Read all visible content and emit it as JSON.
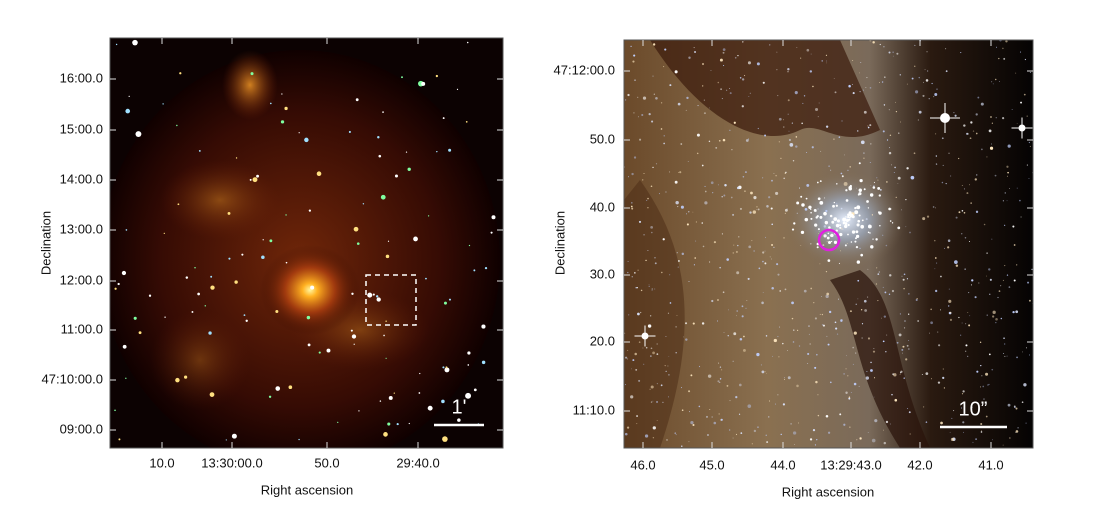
{
  "panels": [
    {
      "y_label": "Declination",
      "x_label": "Right ascension",
      "y_ticks": [
        "16:00.0",
        "15:00.0",
        "14:00.0",
        "13:00.0",
        "12:00.0",
        "11:00.0",
        "47:10:00.0",
        "09:00.0"
      ],
      "x_ticks": [
        "10.0",
        "13:30:00.0",
        "50.0",
        "29:40.0"
      ],
      "scale_bar": "1'"
    },
    {
      "y_label": "Declination",
      "x_label": "Right ascension",
      "y_ticks": [
        "47:12:00.0",
        "50.0",
        "40.0",
        "30.0",
        "20.0",
        "11:10.0"
      ],
      "x_ticks": [
        "46.0",
        "45.0",
        "44.0",
        "13:29:43.0",
        "42.0",
        "41.0"
      ],
      "scale_bar": "10”"
    }
  ]
}
